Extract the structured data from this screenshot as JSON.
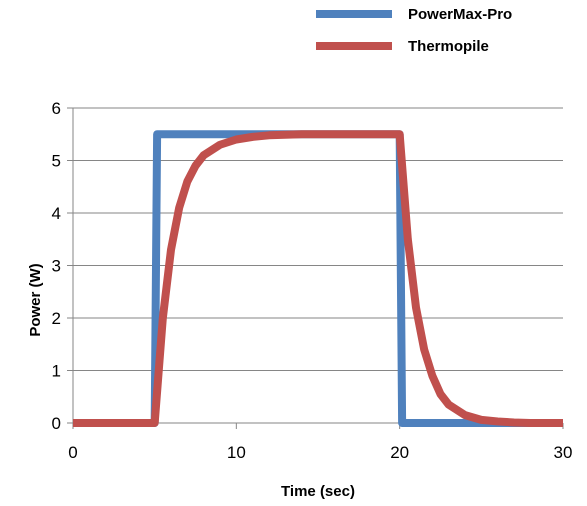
{
  "chart_data": {
    "type": "line",
    "title": "",
    "xlabel": "Time (sec)",
    "ylabel": "Power (W)",
    "xlim": [
      0,
      30
    ],
    "ylim": [
      0,
      6
    ],
    "x_ticks": [
      "0",
      "10",
      "20",
      "30"
    ],
    "y_ticks": [
      "0",
      "1",
      "2",
      "3",
      "4",
      "5",
      "6"
    ],
    "grid": "horizontal",
    "legend_position": "top-right",
    "series": [
      {
        "name": "PowerMax-Pro",
        "color": "#4F81BD",
        "x": [
          0,
          5.0,
          5.15,
          20.0,
          20.15,
          30
        ],
        "y": [
          0,
          0,
          5.5,
          5.5,
          0,
          0
        ]
      },
      {
        "name": "Thermopile",
        "color": "#C0504D",
        "x": [
          0,
          5.0,
          5.5,
          6.0,
          6.5,
          7.0,
          7.5,
          8.0,
          9.0,
          10.0,
          11.0,
          12.0,
          14.0,
          17.0,
          19.5,
          20.0,
          20.5,
          21.0,
          21.5,
          22.0,
          22.5,
          23.0,
          24.0,
          25.0,
          26.0,
          27.0,
          28.0,
          30.0
        ],
        "y": [
          0,
          0,
          2.0,
          3.3,
          4.1,
          4.6,
          4.9,
          5.1,
          5.3,
          5.4,
          5.45,
          5.48,
          5.5,
          5.5,
          5.5,
          5.5,
          3.5,
          2.2,
          1.4,
          0.9,
          0.55,
          0.35,
          0.15,
          0.06,
          0.03,
          0.01,
          0.0,
          0.0
        ]
      }
    ]
  }
}
